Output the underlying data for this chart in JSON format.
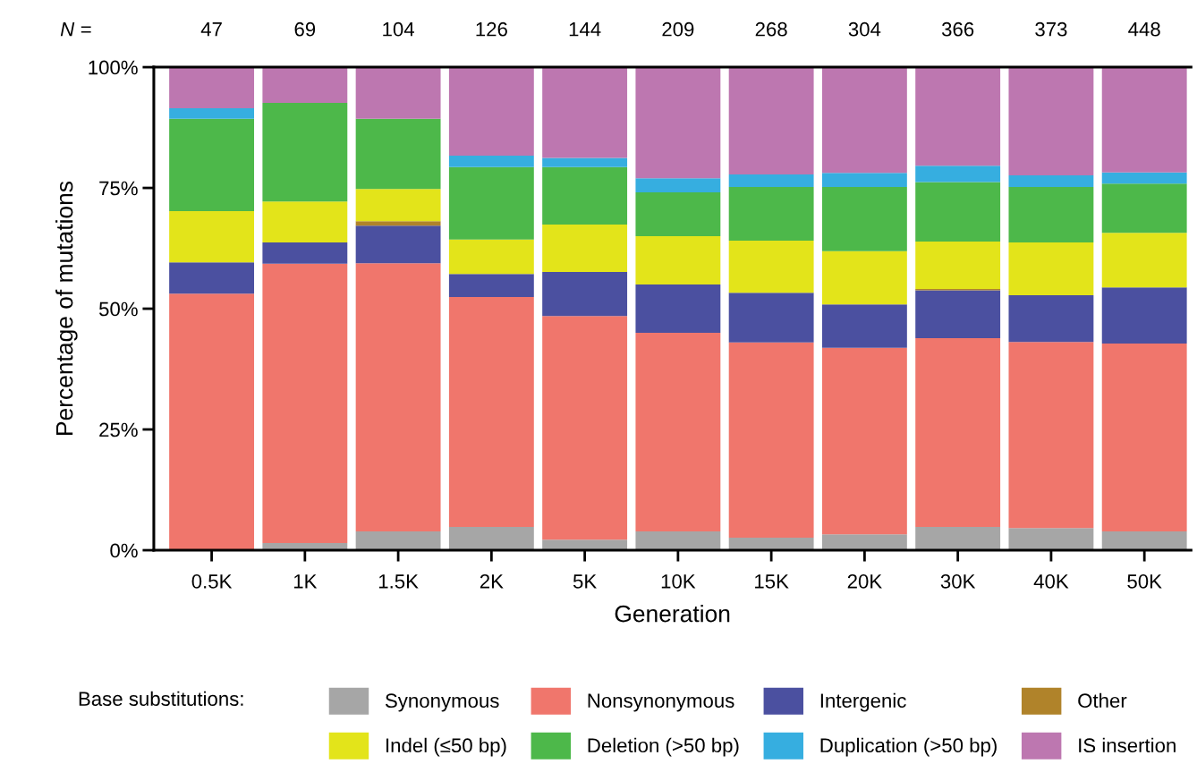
{
  "chart_data": {
    "type": "bar",
    "stacked": true,
    "xlabel": "Generation",
    "ylabel": "Percentage of mutations",
    "legend_title": "Base substitutions:",
    "categories": [
      "0.5K",
      "1K",
      "1.5K",
      "2K",
      "5K",
      "10K",
      "15K",
      "20K",
      "30K",
      "40K",
      "50K"
    ],
    "annotations": [
      "N =",
      "47",
      "69",
      "104",
      "126",
      "144",
      "209",
      "268",
      "304",
      "366",
      "373",
      "448"
    ],
    "ylim": [
      0,
      100
    ],
    "yticks": [
      {
        "value": 0,
        "label": "0%"
      },
      {
        "value": 25,
        "label": "25%"
      },
      {
        "value": 50,
        "label": "50%"
      },
      {
        "value": 75,
        "label": "75%"
      },
      {
        "value": 100,
        "label": "100%"
      }
    ],
    "grid": false,
    "legend": "bottom",
    "series": [
      {
        "name": "Synonymous",
        "color": "#a6a6a6",
        "values": [
          0,
          1.5,
          3.9,
          4.8,
          2.2,
          3.9,
          2.6,
          3.3,
          4.8,
          4.6,
          3.9
        ]
      },
      {
        "name": "Nonsynonymous",
        "color": "#f0766c",
        "values": [
          53.1,
          57.8,
          55.5,
          47.6,
          46.3,
          41.1,
          40.4,
          38.6,
          39.1,
          38.5,
          38.9
        ]
      },
      {
        "name": "Intergenic",
        "color": "#4b50a0",
        "values": [
          6.5,
          4.4,
          7.8,
          4.8,
          9.1,
          10.0,
          10.3,
          9.0,
          9.9,
          9.7,
          11.6
        ]
      },
      {
        "name": "Other",
        "color": "#b0832a",
        "values": [
          0,
          0,
          0.9,
          0,
          0,
          0,
          0,
          0,
          0.3,
          0,
          0
        ]
      },
      {
        "name": "Indel (≤50 bp)",
        "color": "#e3e41a",
        "values": [
          10.6,
          8.5,
          6.7,
          7.1,
          9.8,
          10.0,
          10.8,
          11.0,
          9.8,
          10.9,
          11.3
        ]
      },
      {
        "name": "Deletion (>50 bp)",
        "color": "#4db84a",
        "values": [
          19.1,
          20.4,
          14.5,
          15.0,
          11.9,
          9.1,
          11.1,
          13.3,
          12.3,
          11.5,
          10.2
        ]
      },
      {
        "name": "Duplication (>50 bp)",
        "color": "#36aee0",
        "values": [
          2.2,
          0,
          0,
          2.4,
          1.9,
          2.9,
          2.6,
          2.9,
          3.4,
          2.4,
          2.3
        ]
      },
      {
        "name": "IS insertion",
        "color": "#bd77b0",
        "values": [
          8.5,
          7.4,
          10.7,
          18.3,
          18.8,
          23.0,
          22.2,
          21.9,
          20.4,
          22.4,
          21.8
        ]
      }
    ]
  }
}
